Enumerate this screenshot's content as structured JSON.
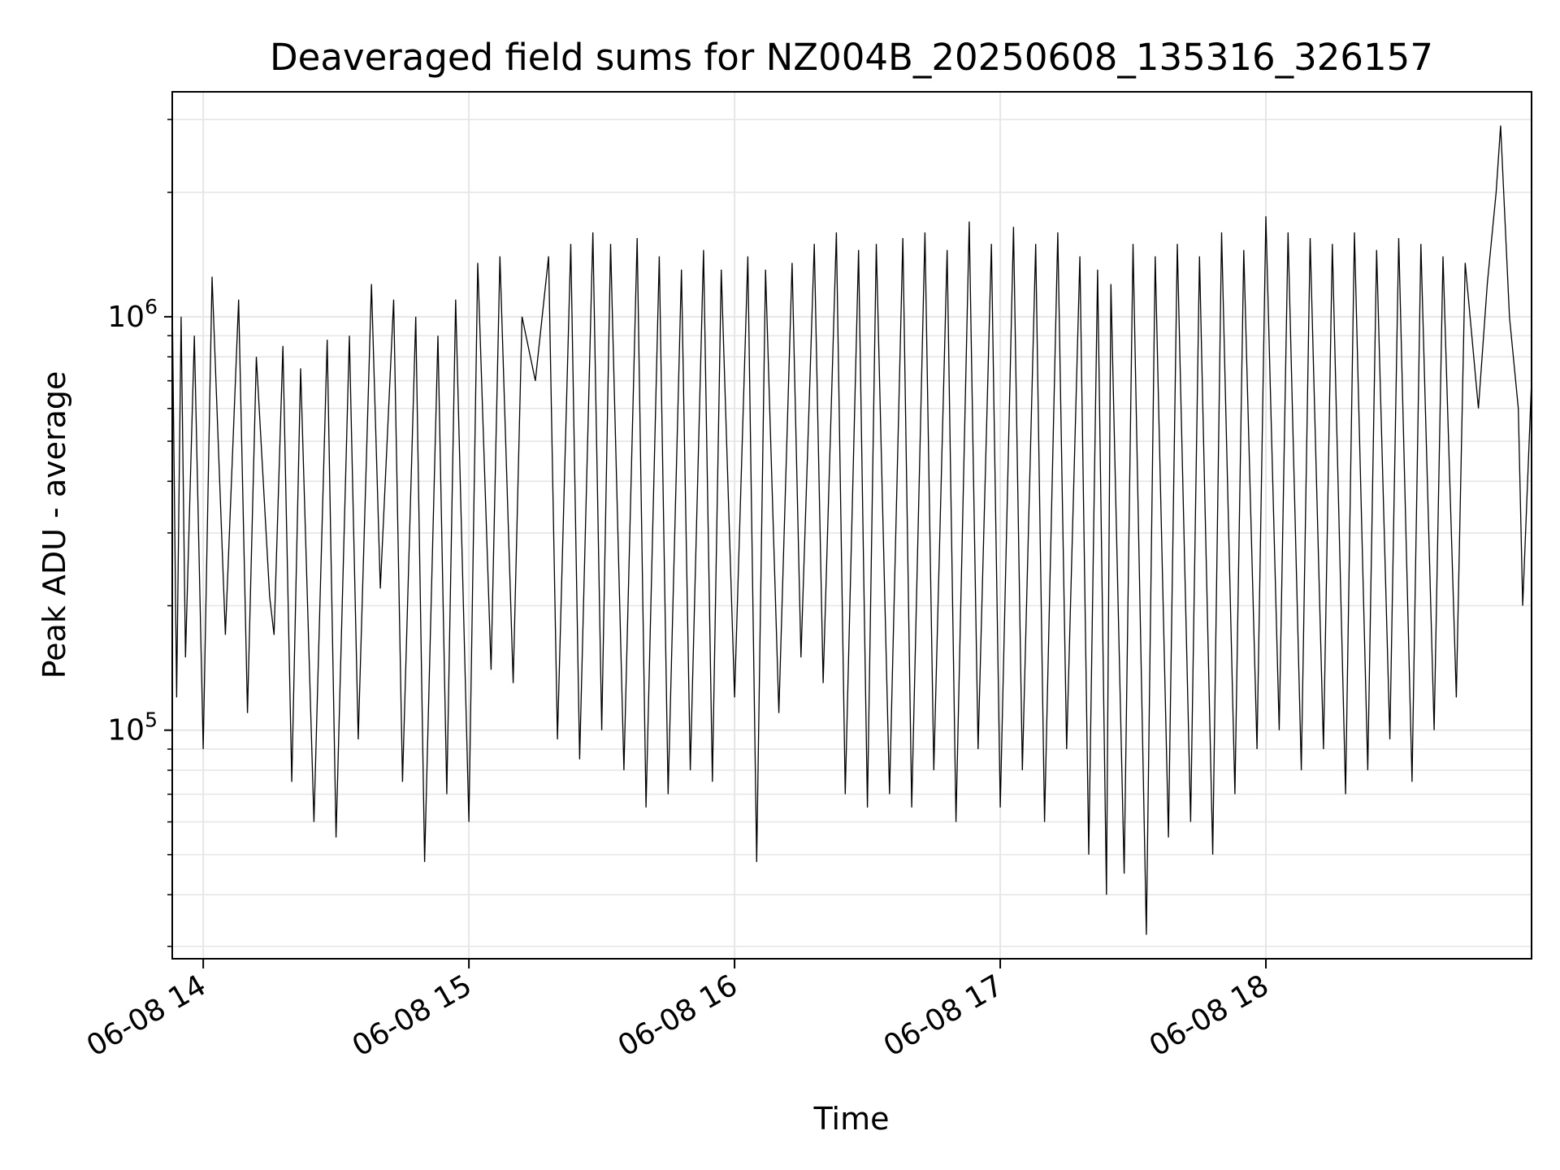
{
  "chart_data": {
    "type": "line",
    "title": "Deaveraged field sums for NZ004B_20250608_135316_326157",
    "xlabel": "Time",
    "ylabel": "Peak ADU - average",
    "yscale": "log",
    "ylim": [
      28000,
      3500000
    ],
    "xlim": [
      "2025-06-08 13:53:00",
      "2025-06-08 19:00:00"
    ],
    "grid": true,
    "line_color": "#000000",
    "x_ticks": [
      {
        "value": "2025-06-08 14:00:00",
        "label": "06-08 14"
      },
      {
        "value": "2025-06-08 15:00:00",
        "label": "06-08 15"
      },
      {
        "value": "2025-06-08 16:00:00",
        "label": "06-08 16"
      },
      {
        "value": "2025-06-08 17:00:00",
        "label": "06-08 17"
      },
      {
        "value": "2025-06-08 18:00:00",
        "label": "06-08 18"
      }
    ],
    "y_ticks": [
      {
        "value": 100000,
        "base": "10",
        "exp": "5"
      },
      {
        "value": 1000000,
        "base": "10",
        "exp": "6"
      }
    ],
    "series": [
      {
        "x": [
          "2025-06-08 13:53:00",
          "2025-06-08 13:54:00",
          "2025-06-08 13:55:00",
          "2025-06-08 13:56:00",
          "2025-06-08 13:58:00",
          "2025-06-08 14:00:00",
          "2025-06-08 14:02:00",
          "2025-06-08 14:05:00",
          "2025-06-08 14:08:00",
          "2025-06-08 14:10:00",
          "2025-06-08 14:12:00",
          "2025-06-08 14:15:00",
          "2025-06-08 14:16:00",
          "2025-06-08 14:18:00",
          "2025-06-08 14:20:00",
          "2025-06-08 14:22:00",
          "2025-06-08 14:25:00",
          "2025-06-08 14:28:00",
          "2025-06-08 14:30:00",
          "2025-06-08 14:33:00",
          "2025-06-08 14:35:00",
          "2025-06-08 14:38:00",
          "2025-06-08 14:40:00",
          "2025-06-08 14:43:00",
          "2025-06-08 14:45:00",
          "2025-06-08 14:48:00",
          "2025-06-08 14:50:00",
          "2025-06-08 14:53:00",
          "2025-06-08 14:55:00",
          "2025-06-08 14:57:00",
          "2025-06-08 15:00:00",
          "2025-06-08 15:02:00",
          "2025-06-08 15:05:00",
          "2025-06-08 15:07:00",
          "2025-06-08 15:10:00",
          "2025-06-08 15:12:00",
          "2025-06-08 15:15:00",
          "2025-06-08 15:18:00",
          "2025-06-08 15:20:00",
          "2025-06-08 15:23:00",
          "2025-06-08 15:25:00",
          "2025-06-08 15:28:00",
          "2025-06-08 15:30:00",
          "2025-06-08 15:32:00",
          "2025-06-08 15:35:00",
          "2025-06-08 15:38:00",
          "2025-06-08 15:40:00",
          "2025-06-08 15:43:00",
          "2025-06-08 15:45:00",
          "2025-06-08 15:48:00",
          "2025-06-08 15:50:00",
          "2025-06-08 15:53:00",
          "2025-06-08 15:55:00",
          "2025-06-08 15:57:00",
          "2025-06-08 16:00:00",
          "2025-06-08 16:03:00",
          "2025-06-08 16:05:00",
          "2025-06-08 16:07:00",
          "2025-06-08 16:10:00",
          "2025-06-08 16:13:00",
          "2025-06-08 16:15:00",
          "2025-06-08 16:18:00",
          "2025-06-08 16:20:00",
          "2025-06-08 16:23:00",
          "2025-06-08 16:25:00",
          "2025-06-08 16:28:00",
          "2025-06-08 16:30:00",
          "2025-06-08 16:32:00",
          "2025-06-08 16:35:00",
          "2025-06-08 16:38:00",
          "2025-06-08 16:40:00",
          "2025-06-08 16:43:00",
          "2025-06-08 16:45:00",
          "2025-06-08 16:48:00",
          "2025-06-08 16:50:00",
          "2025-06-08 16:53:00",
          "2025-06-08 16:55:00",
          "2025-06-08 16:58:00",
          "2025-06-08 17:00:00",
          "2025-06-08 17:03:00",
          "2025-06-08 17:05:00",
          "2025-06-08 17:08:00",
          "2025-06-08 17:10:00",
          "2025-06-08 17:13:00",
          "2025-06-08 17:15:00",
          "2025-06-08 17:18:00",
          "2025-06-08 17:20:00",
          "2025-06-08 17:22:00",
          "2025-06-08 17:24:00",
          "2025-06-08 17:25:00",
          "2025-06-08 17:28:00",
          "2025-06-08 17:30:00",
          "2025-06-08 17:33:00",
          "2025-06-08 17:35:00",
          "2025-06-08 17:38:00",
          "2025-06-08 17:40:00",
          "2025-06-08 17:43:00",
          "2025-06-08 17:45:00",
          "2025-06-08 17:48:00",
          "2025-06-08 17:50:00",
          "2025-06-08 17:53:00",
          "2025-06-08 17:55:00",
          "2025-06-08 17:58:00",
          "2025-06-08 18:00:00",
          "2025-06-08 18:03:00",
          "2025-06-08 18:05:00",
          "2025-06-08 18:08:00",
          "2025-06-08 18:10:00",
          "2025-06-08 18:13:00",
          "2025-06-08 18:15:00",
          "2025-06-08 18:18:00",
          "2025-06-08 18:20:00",
          "2025-06-08 18:23:00",
          "2025-06-08 18:25:00",
          "2025-06-08 18:28:00",
          "2025-06-08 18:30:00",
          "2025-06-08 18:33:00",
          "2025-06-08 18:35:00",
          "2025-06-08 18:38:00",
          "2025-06-08 18:40:00",
          "2025-06-08 18:43:00",
          "2025-06-08 18:45:00",
          "2025-06-08 18:48:00",
          "2025-06-08 18:50:00",
          "2025-06-08 18:52:00",
          "2025-06-08 18:53:00",
          "2025-06-08 18:55:00",
          "2025-06-08 18:57:00",
          "2025-06-08 18:58:00",
          "2025-06-08 19:00:00"
        ],
        "y": [
          1100000,
          120000,
          1000000,
          150000,
          900000,
          90000,
          1250000,
          170000,
          1100000,
          110000,
          800000,
          210000,
          170000,
          850000,
          75000,
          750000,
          60000,
          880000,
          55000,
          900000,
          95000,
          1200000,
          220000,
          1100000,
          75000,
          1000000,
          48000,
          900000,
          70000,
          1100000,
          60000,
          1350000,
          140000,
          1400000,
          130000,
          1000000,
          700000,
          1400000,
          95000,
          1500000,
          85000,
          1600000,
          100000,
          1500000,
          80000,
          1550000,
          65000,
          1400000,
          70000,
          1300000,
          80000,
          1450000,
          75000,
          1300000,
          120000,
          1400000,
          48000,
          1300000,
          110000,
          1350000,
          150000,
          1500000,
          130000,
          1600000,
          70000,
          1450000,
          65000,
          1500000,
          70000,
          1550000,
          65000,
          1600000,
          80000,
          1450000,
          60000,
          1700000,
          90000,
          1500000,
          65000,
          1650000,
          80000,
          1500000,
          60000,
          1600000,
          90000,
          1400000,
          50000,
          1300000,
          40000,
          1200000,
          45000,
          1500000,
          32000,
          1400000,
          55000,
          1500000,
          60000,
          1400000,
          50000,
          1600000,
          70000,
          1450000,
          90000,
          1750000,
          100000,
          1600000,
          80000,
          1550000,
          90000,
          1500000,
          70000,
          1600000,
          80000,
          1450000,
          95000,
          1550000,
          75000,
          1500000,
          100000,
          1400000,
          120000,
          1350000,
          600000,
          1200000,
          2000000,
          2900000,
          1000000,
          600000,
          200000,
          700000
        ]
      }
    ]
  }
}
